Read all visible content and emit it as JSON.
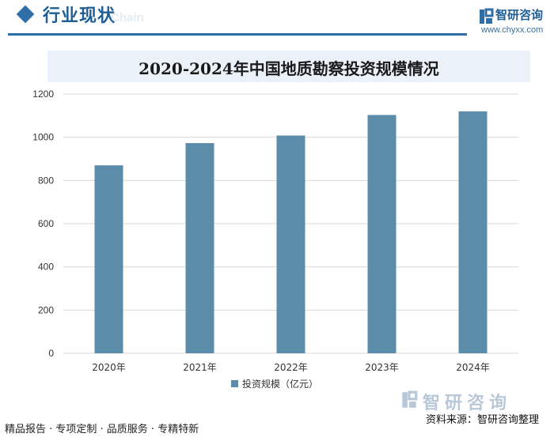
{
  "header": {
    "section_title": "行业现状",
    "section_subtitle": "Chain",
    "logo_name": "智研咨询",
    "logo_url": "www.chyxx.com"
  },
  "chart_data": {
    "type": "bar",
    "title": "2020-2024年中国地质勘察投资规模情况",
    "categories": [
      "2020年",
      "2021年",
      "2022年",
      "2023年",
      "2024年"
    ],
    "series": [
      {
        "name": "投资规模（亿元）",
        "values": [
          870,
          973,
          1008,
          1103,
          1120
        ],
        "color": "#5b8dab"
      }
    ],
    "ylim": [
      0,
      1200
    ],
    "yticks": [
      0,
      200,
      400,
      600,
      800,
      1000,
      1200
    ],
    "grid": true,
    "legend": "bottom"
  },
  "footer": {
    "tagline": "精品报告 · 专项定制 · 品质服务 · 专精特新",
    "brand": "智研咨询",
    "source": "资料来源：智研咨询整理"
  }
}
